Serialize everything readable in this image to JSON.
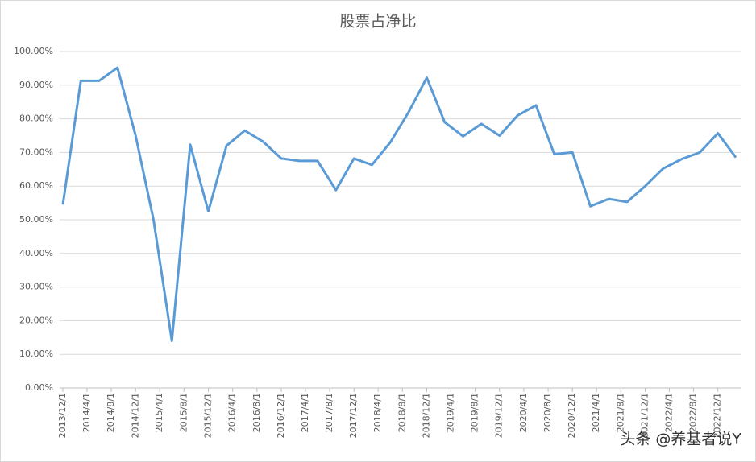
{
  "chart_data": {
    "type": "line",
    "title": "股票占净比",
    "watermark": "头条 @养基者说Y",
    "x": [
      "2013/12/1",
      "2014/3/1",
      "2014/6/1",
      "2014/9/1",
      "2014/12/1",
      "2015/3/1",
      "2015/6/1",
      "2015/9/1",
      "2015/12/1",
      "2016/3/1",
      "2016/6/1",
      "2016/9/1",
      "2016/12/1",
      "2017/3/1",
      "2017/6/1",
      "2017/9/1",
      "2017/12/1",
      "2018/3/1",
      "2018/6/1",
      "2018/9/1",
      "2018/12/1",
      "2019/3/1",
      "2019/6/1",
      "2019/9/1",
      "2019/12/1",
      "2020/3/1",
      "2020/6/1",
      "2020/9/1",
      "2020/12/1",
      "2021/3/1",
      "2021/6/1",
      "2021/9/1",
      "2021/12/1",
      "2022/3/1",
      "2022/6/1",
      "2022/9/1",
      "2022/12/1",
      "2023/3/1"
    ],
    "series": [
      {
        "name": "股票占净比",
        "color": "#5b9bd5",
        "values": [
          54.5,
          91.3,
          91.3,
          95.2,
          75,
          50,
          14,
          72.3,
          52.5,
          72,
          76.5,
          73.2,
          68.2,
          67.5,
          67.5,
          58.8,
          68.2,
          66.3,
          73,
          82,
          92.2,
          79,
          74.8,
          78.5,
          75,
          81,
          84,
          69.5,
          70,
          54,
          56.2,
          55.3,
          60,
          65.2,
          68,
          70,
          75.7,
          68.5
        ]
      }
    ],
    "xlim": [
      "2013/12/1",
      "2023/3/1"
    ],
    "xticks": [
      "2013/12/1",
      "2014/4/1",
      "2014/8/1",
      "2014/12/1",
      "2015/4/1",
      "2015/8/1",
      "2015/12/1",
      "2016/4/1",
      "2016/8/1",
      "2016/12/1",
      "2017/4/1",
      "2017/8/1",
      "2017/12/1",
      "2018/4/1",
      "2018/8/1",
      "2018/12/1",
      "2019/4/1",
      "2019/8/1",
      "2019/12/1",
      "2020/4/1",
      "2020/8/1",
      "2020/12/1",
      "2021/4/1",
      "2021/8/1",
      "2021/12/1",
      "2022/4/1",
      "2022/8/1",
      "2022/12/1"
    ],
    "ylim": [
      0,
      100
    ],
    "yticks": [
      {
        "value": 0,
        "label": "0.00%"
      },
      {
        "value": 10,
        "label": "10.00%"
      },
      {
        "value": 20,
        "label": "20.00%"
      },
      {
        "value": 30,
        "label": "30.00%"
      },
      {
        "value": 40,
        "label": "40.00%"
      },
      {
        "value": 50,
        "label": "50.00%"
      },
      {
        "value": 60,
        "label": "60.00%"
      },
      {
        "value": 70,
        "label": "70.00%"
      },
      {
        "value": 80,
        "label": "80.00%"
      },
      {
        "value": 90,
        "label": "90.00%"
      },
      {
        "value": 100,
        "label": "100.00%"
      }
    ],
    "grid": true
  }
}
